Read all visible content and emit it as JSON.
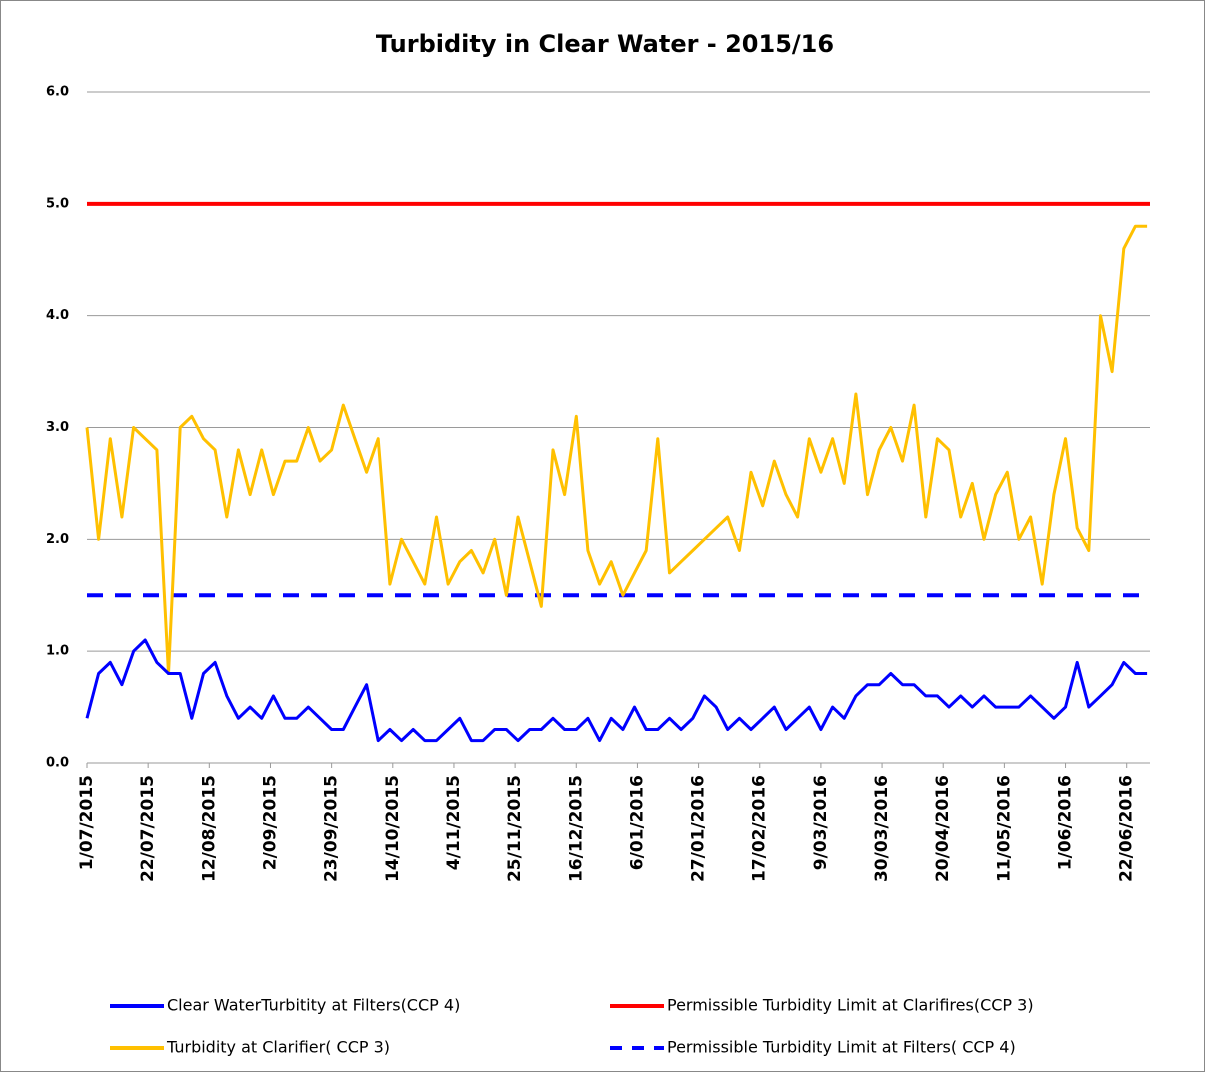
{
  "chart_data": {
    "type": "line",
    "title": "Turbidity in Clear Water  - 2015/16",
    "x": [
      "2015-07-01",
      "2015-07-05",
      "2015-07-09",
      "2015-07-13",
      "2015-07-17",
      "2015-07-21",
      "2015-07-25",
      "2015-07-29",
      "2015-08-02",
      "2015-08-06",
      "2015-08-10",
      "2015-08-14",
      "2015-08-18",
      "2015-08-22",
      "2015-08-26",
      "2015-08-30",
      "2015-09-03",
      "2015-09-07",
      "2015-09-11",
      "2015-09-15",
      "2015-09-19",
      "2015-09-23",
      "2015-09-27",
      "2015-10-01",
      "2015-10-05",
      "2015-10-09",
      "2015-10-13",
      "2015-10-17",
      "2015-10-21",
      "2015-10-25",
      "2015-10-29",
      "2015-11-02",
      "2015-11-06",
      "2015-11-10",
      "2015-11-14",
      "2015-11-18",
      "2015-11-22",
      "2015-11-26",
      "2015-11-30",
      "2015-12-04",
      "2015-12-08",
      "2015-12-12",
      "2015-12-16",
      "2015-12-20",
      "2015-12-24",
      "2015-12-28",
      "2016-01-01",
      "2016-01-05",
      "2016-01-09",
      "2016-01-13",
      "2016-01-17",
      "2016-01-21",
      "2016-01-25",
      "2016-01-29",
      "2016-02-02",
      "2016-02-06",
      "2016-02-10",
      "2016-02-14",
      "2016-02-18",
      "2016-02-22",
      "2016-02-26",
      "2016-03-01",
      "2016-03-05",
      "2016-03-09",
      "2016-03-13",
      "2016-03-17",
      "2016-03-21",
      "2016-03-25",
      "2016-03-29",
      "2016-04-02",
      "2016-04-06",
      "2016-04-10",
      "2016-04-14",
      "2016-04-18",
      "2016-04-22",
      "2016-04-26",
      "2016-04-30",
      "2016-05-04",
      "2016-05-08",
      "2016-05-12",
      "2016-05-16",
      "2016-05-20",
      "2016-05-24",
      "2016-05-28",
      "2016-06-01",
      "2016-06-05",
      "2016-06-09",
      "2016-06-13",
      "2016-06-17",
      "2016-06-21",
      "2016-06-25",
      "2016-06-29"
    ],
    "series": [
      {
        "name": "Clear WaterTurbitity at Filters(CCP 4)",
        "color": "#0000ff",
        "values": [
          0.4,
          0.8,
          0.9,
          0.7,
          1.0,
          1.1,
          0.9,
          0.8,
          0.8,
          0.4,
          0.8,
          0.9,
          0.6,
          0.4,
          0.5,
          0.4,
          0.6,
          0.4,
          0.4,
          0.5,
          0.4,
          0.3,
          0.3,
          0.5,
          0.7,
          0.2,
          0.3,
          0.2,
          0.3,
          0.2,
          0.2,
          0.3,
          0.4,
          0.2,
          0.2,
          0.3,
          0.3,
          0.2,
          0.3,
          0.3,
          0.4,
          0.3,
          0.3,
          0.4,
          0.2,
          0.4,
          0.3,
          0.5,
          0.3,
          0.3,
          0.4,
          0.3,
          0.4,
          0.6,
          0.5,
          0.3,
          0.4,
          0.3,
          0.4,
          0.5,
          0.3,
          0.4,
          0.5,
          0.3,
          0.5,
          0.4,
          0.6,
          0.7,
          0.7,
          0.8,
          0.7,
          0.7,
          0.6,
          0.6,
          0.5,
          0.6,
          0.5,
          0.6,
          0.5,
          0.5,
          0.5,
          0.6,
          0.5,
          0.4,
          0.5,
          0.9,
          0.5,
          0.6,
          0.7,
          0.9,
          0.8,
          0.8
        ]
      },
      {
        "name": "Turbidity at Clarifier( CCP 3)",
        "color": "#ffc000",
        "values": [
          3.0,
          2.0,
          2.9,
          2.2,
          3.0,
          2.9,
          2.8,
          0.8,
          3.0,
          3.1,
          2.9,
          2.8,
          2.2,
          2.8,
          2.4,
          2.8,
          2.4,
          2.7,
          2.7,
          3.0,
          2.7,
          2.8,
          3.2,
          2.9,
          2.6,
          2.9,
          1.6,
          2.0,
          1.8,
          1.6,
          2.2,
          1.6,
          1.8,
          1.9,
          1.7,
          2.0,
          1.5,
          2.2,
          1.8,
          1.4,
          2.8,
          2.4,
          3.1,
          1.9,
          1.6,
          1.8,
          1.5,
          1.7,
          1.9,
          2.9,
          1.7,
          1.8,
          1.9,
          2.0,
          2.1,
          2.2,
          1.9,
          2.6,
          2.3,
          2.7,
          2.4,
          2.2,
          2.9,
          2.6,
          2.9,
          2.5,
          3.3,
          2.4,
          2.8,
          3.0,
          2.7,
          3.2,
          2.2,
          2.9,
          2.8,
          2.2,
          2.5,
          2.0,
          2.4,
          2.6,
          2.0,
          2.2,
          1.6,
          2.4,
          2.9,
          2.1,
          1.9,
          4.0,
          3.5,
          4.6,
          4.8,
          4.8
        ]
      }
    ],
    "reference_lines": [
      {
        "name": "Permissible Turbidity Limit at Clarifires(CCP 3)",
        "color": "#ff0000",
        "value": 5,
        "style": "solid"
      },
      {
        "name": "Permissible Turbidity Limit at Filters( CCP 4)",
        "color": "#0000ff",
        "value": 1.5,
        "style": "dashed"
      }
    ],
    "xlim": [
      "2015-07-01",
      "2016-06-30"
    ],
    "xticks": [
      {
        "value": "2015-07-01",
        "label": "1/07/2015"
      },
      {
        "value": "2015-07-22",
        "label": "22/07/2015"
      },
      {
        "value": "2015-08-12",
        "label": "12/08/2015"
      },
      {
        "value": "2015-09-02",
        "label": "2/09/2015"
      },
      {
        "value": "2015-09-23",
        "label": "23/09/2015"
      },
      {
        "value": "2015-10-14",
        "label": "14/10/2015"
      },
      {
        "value": "2015-11-04",
        "label": "4/11/2015"
      },
      {
        "value": "2015-11-25",
        "label": "25/11/2015"
      },
      {
        "value": "2015-12-16",
        "label": "16/12/2015"
      },
      {
        "value": "2016-01-06",
        "label": "6/01/2016"
      },
      {
        "value": "2016-01-27",
        "label": "27/01/2016"
      },
      {
        "value": "2016-02-17",
        "label": "17/02/2016"
      },
      {
        "value": "2016-03-09",
        "label": "9/03/2016"
      },
      {
        "value": "2016-03-30",
        "label": "30/03/2016"
      },
      {
        "value": "2016-04-20",
        "label": "20/04/2016"
      },
      {
        "value": "2016-05-11",
        "label": "11/05/2016"
      },
      {
        "value": "2016-06-01",
        "label": "1/06/2016"
      },
      {
        "value": "2016-06-22",
        "label": "22/06/2016"
      }
    ],
    "ylim": [
      0,
      6
    ],
    "yticks": [
      {
        "value": 0,
        "label": "0.0"
      },
      {
        "value": 1,
        "label": "1.0"
      },
      {
        "value": 2,
        "label": "2.0"
      },
      {
        "value": 3,
        "label": "3.0"
      },
      {
        "value": 4,
        "label": "4.0"
      },
      {
        "value": 5,
        "label": "5.0"
      },
      {
        "value": 6,
        "label": "6.0"
      }
    ],
    "grid": true,
    "legend": "bottom"
  }
}
